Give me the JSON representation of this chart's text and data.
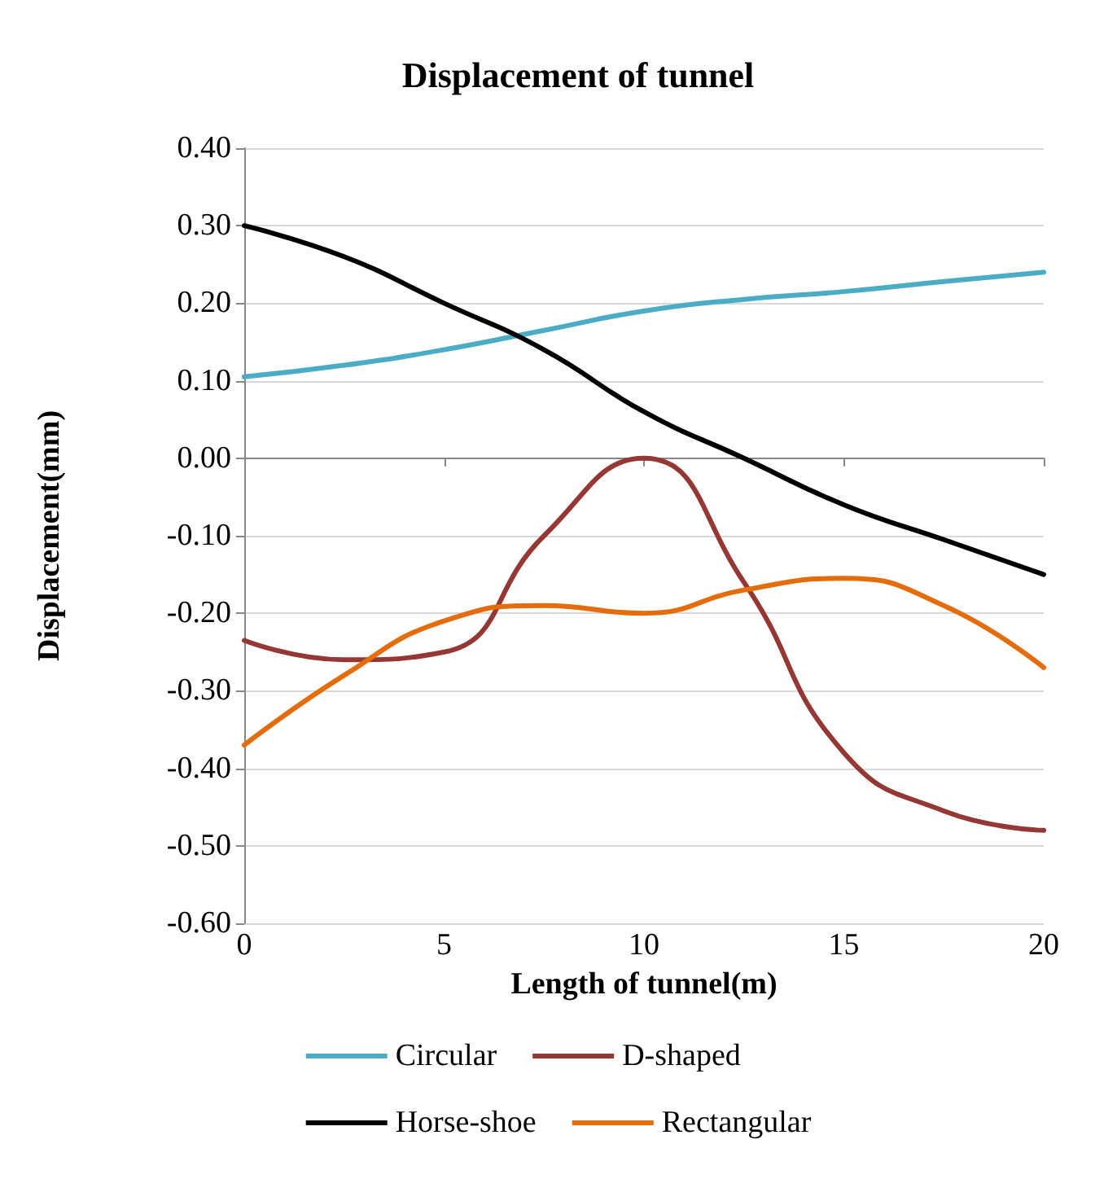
{
  "chart_data": {
    "type": "line",
    "title": "Displacement of tunnel",
    "xlabel": "Length of tunnel(m)",
    "ylabel": "Displacement(mm)",
    "x": [
      0,
      2.5,
      5,
      7.5,
      10,
      12.5,
      15,
      17.5,
      20
    ],
    "series": [
      {
        "name": "Circular",
        "color": "#4bacc6",
        "values": [
          0.105,
          0.12,
          0.14,
          0.165,
          0.19,
          0.205,
          0.215,
          0.228,
          0.24
        ]
      },
      {
        "name": "D-shaped",
        "color": "#953735",
        "values": [
          -0.235,
          -0.26,
          -0.25,
          -0.1,
          0.0,
          -0.16,
          -0.38,
          -0.455,
          -0.48
        ]
      },
      {
        "name": "Horse-shoe",
        "color": "#000000",
        "values": [
          0.3,
          0.26,
          0.2,
          0.14,
          0.06,
          0.0,
          -0.06,
          -0.105,
          -0.15
        ]
      },
      {
        "name": "Rectangular",
        "color": "#e46c0a",
        "values": [
          -0.37,
          -0.28,
          -0.21,
          -0.19,
          -0.2,
          -0.17,
          -0.155,
          -0.19,
          -0.27
        ]
      }
    ],
    "xlim": [
      0,
      20
    ],
    "xticks": [
      0,
      5,
      10,
      15,
      20
    ],
    "ylim": [
      -0.6,
      0.4
    ],
    "yticks": [
      {
        "value": 0.4,
        "label": "0.40"
      },
      {
        "value": 0.3,
        "label": "0.30"
      },
      {
        "value": 0.2,
        "label": "0.20"
      },
      {
        "value": 0.1,
        "label": "0.10"
      },
      {
        "value": 0,
        "label": "0.00"
      },
      {
        "value": -0.1,
        "label": "-0.10"
      },
      {
        "value": -0.2,
        "label": "-0.20"
      },
      {
        "value": -0.3,
        "label": "-0.30"
      },
      {
        "value": -0.4,
        "label": "-0.40"
      },
      {
        "value": -0.5,
        "label": "-0.50"
      },
      {
        "value": -0.6,
        "label": "-0.60"
      }
    ],
    "grid": "y",
    "legend": "bottom",
    "marker": "none",
    "line_style": "solid"
  }
}
